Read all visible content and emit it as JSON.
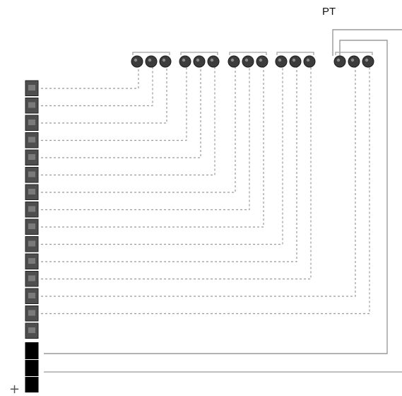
{
  "diagram": {
    "label_pt": "PT",
    "label_plus": "+",
    "terminal_groups": [
      {
        "name": "group-1",
        "count": 3
      },
      {
        "name": "group-2",
        "count": 3
      },
      {
        "name": "group-3",
        "count": 3
      },
      {
        "name": "group-4",
        "count": 3
      },
      {
        "name": "group-5",
        "count": 3
      }
    ],
    "strip": {
      "gray_terminals": 15,
      "black_terminals": 3
    },
    "colors": {
      "wire": "#9a9a9a",
      "terminal_fill": "#3c3c3c",
      "strip_gray": "#4e4e4e",
      "strip_black": "#000000",
      "bracket": "#a0a0a0",
      "background": "#ffffff"
    }
  }
}
